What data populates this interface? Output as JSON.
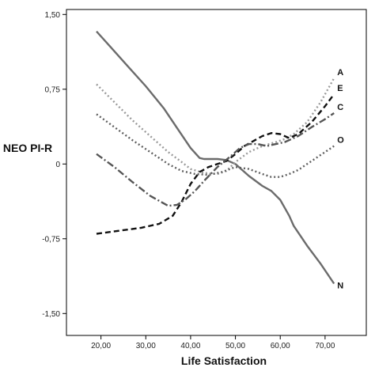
{
  "chart_data": {
    "type": "line",
    "xlabel": "Life Satisfaction",
    "ylabel": "NEO PI-R",
    "xlim": [
      12.3,
      79.2
    ],
    "ylim": [
      -1.72,
      1.55
    ],
    "xticks": [
      20,
      30,
      40,
      50,
      60,
      70
    ],
    "xtick_labels": [
      "20,00",
      "30,00",
      "40,00",
      "50,00",
      "60,00",
      "70,00"
    ],
    "yticks": [
      1.5,
      0.75,
      0,
      -0.75,
      -1.5
    ],
    "ytick_labels": [
      "1,50",
      "0,75",
      "0",
      "-0,75",
      "-1,50"
    ],
    "grid": false,
    "legend": "labels at line ends",
    "series": [
      {
        "name": "N",
        "color": "#6b6b6b",
        "dash": "solid",
        "x": [
          19,
          22,
          26,
          30,
          34,
          37,
          40,
          42,
          43,
          44,
          46,
          48,
          50,
          53,
          56,
          58,
          60,
          62,
          63,
          66,
          69,
          72
        ],
        "y": [
          1.33,
          1.18,
          0.98,
          0.78,
          0.56,
          0.36,
          0.16,
          0.06,
          0.05,
          0.05,
          0.05,
          0.04,
          0.0,
          -0.12,
          -0.22,
          -0.27,
          -0.36,
          -0.52,
          -0.62,
          -0.82,
          -1.0,
          -1.2
        ]
      },
      {
        "name": "A",
        "color": "#9a9a9a",
        "dash": "dot",
        "x": [
          19,
          23,
          27,
          31,
          35,
          38,
          40,
          43,
          46,
          48,
          50,
          53,
          56,
          59,
          61,
          63,
          66,
          69,
          72
        ],
        "y": [
          0.8,
          0.62,
          0.44,
          0.28,
          0.12,
          0.02,
          -0.05,
          -0.09,
          -0.1,
          -0.07,
          0.02,
          0.12,
          0.18,
          0.22,
          0.25,
          0.3,
          0.42,
          0.62,
          0.86
        ]
      },
      {
        "name": "E",
        "color": "#111111",
        "dash": "dash",
        "x": [
          19,
          24,
          29,
          33,
          36,
          38,
          40,
          42,
          44,
          46,
          48,
          50,
          52,
          54,
          56,
          58,
          60,
          62,
          64,
          67,
          70,
          72
        ],
        "y": [
          -0.7,
          -0.67,
          -0.64,
          -0.6,
          -0.52,
          -0.38,
          -0.2,
          -0.08,
          -0.03,
          0.0,
          0.03,
          0.1,
          0.18,
          0.23,
          0.28,
          0.31,
          0.3,
          0.26,
          0.3,
          0.42,
          0.58,
          0.7
        ]
      },
      {
        "name": "C",
        "color": "#555555",
        "dash": "dashdot",
        "x": [
          19,
          23,
          27,
          31,
          35,
          37,
          39,
          41,
          43,
          46,
          49,
          51,
          53,
          55,
          57,
          59,
          61,
          64,
          67,
          70,
          72
        ],
        "y": [
          0.1,
          -0.03,
          -0.18,
          -0.32,
          -0.42,
          -0.41,
          -0.35,
          -0.27,
          -0.17,
          -0.03,
          0.08,
          0.16,
          0.2,
          0.2,
          0.18,
          0.2,
          0.22,
          0.28,
          0.37,
          0.45,
          0.51
        ]
      },
      {
        "name": "O",
        "color": "#5f5f5f",
        "dash": "dot",
        "x": [
          19,
          23,
          27,
          31,
          35,
          38,
          41,
          44,
          47,
          50,
          53,
          56,
          58,
          60,
          62,
          64,
          66,
          68,
          70,
          72
        ],
        "y": [
          0.5,
          0.37,
          0.24,
          0.12,
          0.0,
          -0.07,
          -0.1,
          -0.11,
          -0.08,
          -0.03,
          -0.05,
          -0.1,
          -0.13,
          -0.13,
          -0.1,
          -0.06,
          0.0,
          0.06,
          0.12,
          0.18
        ]
      }
    ]
  }
}
